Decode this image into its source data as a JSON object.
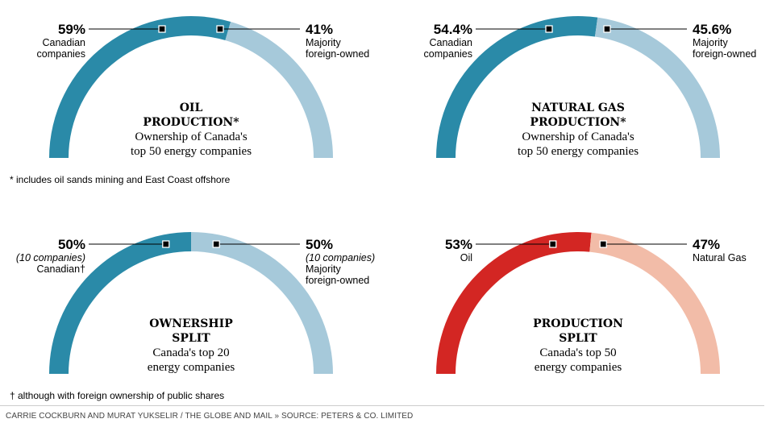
{
  "colors": {
    "blue_dark": "#2a8aa8",
    "blue_light": "#a6c9da",
    "red_dark": "#d32623",
    "red_light": "#f2bca8"
  },
  "chart_data": [
    {
      "type": "pie",
      "style": "semicircle-gauge",
      "title": "OIL PRODUCTION*",
      "title_lines": [
        "OIL",
        "PRODUCTION*"
      ],
      "subtitle_lines": [
        "Ownership of Canada's",
        "top 50 energy companies"
      ],
      "slices": [
        {
          "value": 59,
          "value_label": "59%",
          "label_lines": [
            "Canadian",
            "companies"
          ],
          "color": "#2a8aa8"
        },
        {
          "value": 41,
          "value_label": "41%",
          "label_lines": [
            "Majority",
            "foreign-owned"
          ],
          "color": "#a6c9da"
        }
      ]
    },
    {
      "type": "pie",
      "style": "semicircle-gauge",
      "title": "NATURAL GAS PRODUCTION*",
      "title_lines": [
        "NATURAL GAS",
        "PRODUCTION*"
      ],
      "subtitle_lines": [
        "Ownership of Canada's",
        "top 50 energy companies"
      ],
      "slices": [
        {
          "value": 54.4,
          "value_label": "54.4%",
          "label_lines": [
            "Canadian",
            "companies"
          ],
          "color": "#2a8aa8"
        },
        {
          "value": 45.6,
          "value_label": "45.6%",
          "label_lines": [
            "Majority",
            "foreign-owned"
          ],
          "color": "#a6c9da"
        }
      ]
    },
    {
      "type": "pie",
      "style": "semicircle-gauge",
      "title": "OWNERSHIP SPLIT",
      "title_lines": [
        "OWNERSHIP",
        "SPLIT"
      ],
      "subtitle_lines": [
        "Canada's top 20",
        "energy companies"
      ],
      "slices": [
        {
          "value": 50,
          "value_label": "50%",
          "label_lines": [
            "(10 companies)",
            "Canadian†"
          ],
          "italic_first": true,
          "color": "#2a8aa8"
        },
        {
          "value": 50,
          "value_label": "50%",
          "label_lines": [
            "(10 companies)",
            "Majority",
            "foreign-owned"
          ],
          "italic_first": true,
          "color": "#a6c9da"
        }
      ]
    },
    {
      "type": "pie",
      "style": "semicircle-gauge",
      "title": "PRODUCTION SPLIT",
      "title_lines": [
        "PRODUCTION",
        "SPLIT"
      ],
      "subtitle_lines": [
        "Canada's top 50",
        "energy companies"
      ],
      "slices": [
        {
          "value": 53,
          "value_label": "53%",
          "label_lines": [
            "Oil"
          ],
          "color": "#d32623"
        },
        {
          "value": 47,
          "value_label": "47%",
          "label_lines": [
            "Natural Gas"
          ],
          "color": "#f2bca8"
        }
      ]
    }
  ],
  "notes": {
    "oil_sands": "* includes oil sands mining and East Coast offshore",
    "foreign_ownership": "† although with foreign ownership of public shares"
  },
  "credit": "CARRIE COCKBURN AND MURAT YUKSELIR / THE GLOBE AND MAIL » SOURCE: PETERS & CO. LIMITED"
}
